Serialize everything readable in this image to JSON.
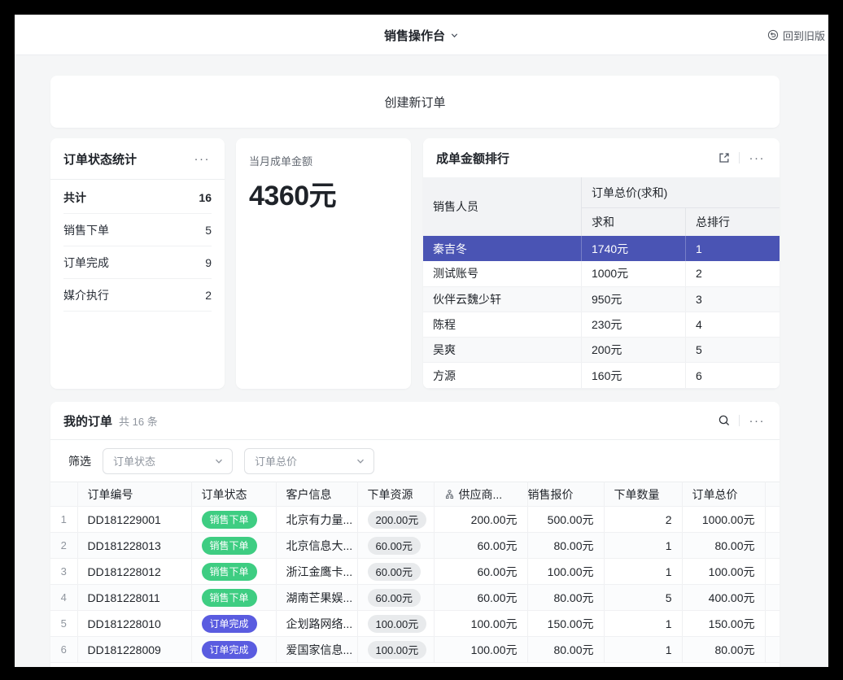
{
  "header": {
    "title": "销售操作台",
    "back_label": "回到旧版"
  },
  "create_order": {
    "label": "创建新订单"
  },
  "status_card": {
    "title": "订单状态统计",
    "more": "···",
    "rows": [
      {
        "label": "共计",
        "value": "16",
        "bold": true
      },
      {
        "label": "销售下单",
        "value": "5",
        "bold": false
      },
      {
        "label": "订单完成",
        "value": "9",
        "bold": false
      },
      {
        "label": "媒介执行",
        "value": "2",
        "bold": false
      }
    ]
  },
  "amount_card": {
    "label": "当月成单金额",
    "value": "4360元"
  },
  "ranking_card": {
    "title": "成单金额排行",
    "more": "···",
    "col_person": "销售人员",
    "col_group": "订单总价(求和)",
    "col_sum": "求和",
    "col_rank": "总排行",
    "rows": [
      {
        "name": "秦吉冬",
        "sum": "1740元",
        "rank": "1",
        "highlight": true
      },
      {
        "name": "测试账号",
        "sum": "1000元",
        "rank": "2",
        "highlight": false
      },
      {
        "name": "伙伴云魏少轩",
        "sum": "950元",
        "rank": "3",
        "highlight": false
      },
      {
        "name": "陈程",
        "sum": "230元",
        "rank": "4",
        "highlight": false
      },
      {
        "name": "吴爽",
        "sum": "200元",
        "rank": "5",
        "highlight": false
      },
      {
        "name": "方源",
        "sum": "160元",
        "rank": "6",
        "highlight": false
      }
    ]
  },
  "orders_card": {
    "title": "我的订单",
    "count": "共 16 条",
    "more": "···",
    "filter_label": "筛选",
    "filters": [
      "订单状态",
      "订单总价"
    ],
    "columns": {
      "id": "订单编号",
      "status": "订单状态",
      "customer": "客户信息",
      "resource": "下单资源",
      "supplier": "供应商...",
      "quote": "销售报价",
      "qty": "下单数量",
      "total": "订单总价"
    },
    "rows": [
      {
        "num": "1",
        "id": "DD181229001",
        "status": "销售下单",
        "status_type": "green",
        "customer": "北京有力量...",
        "resource": "200.00元",
        "supplier": "200.00元",
        "quote": "500.00元",
        "qty": "2",
        "total": "1000.00元"
      },
      {
        "num": "2",
        "id": "DD181228013",
        "status": "销售下单",
        "status_type": "green",
        "customer": "北京信息大...",
        "resource": "60.00元",
        "supplier": "60.00元",
        "quote": "80.00元",
        "qty": "1",
        "total": "80.00元"
      },
      {
        "num": "3",
        "id": "DD181228012",
        "status": "销售下单",
        "status_type": "green",
        "customer": "浙江金鹰卡...",
        "resource": "60.00元",
        "supplier": "60.00元",
        "quote": "100.00元",
        "qty": "1",
        "total": "100.00元"
      },
      {
        "num": "4",
        "id": "DD181228011",
        "status": "销售下单",
        "status_type": "green",
        "customer": "湖南芒果娱...",
        "resource": "60.00元",
        "supplier": "60.00元",
        "quote": "80.00元",
        "qty": "5",
        "total": "400.00元"
      },
      {
        "num": "5",
        "id": "DD181228010",
        "status": "订单完成",
        "status_type": "indigo",
        "customer": "企划路网络...",
        "resource": "100.00元",
        "supplier": "100.00元",
        "quote": "150.00元",
        "qty": "1",
        "total": "150.00元"
      },
      {
        "num": "6",
        "id": "DD181228009",
        "status": "订单完成",
        "status_type": "indigo",
        "customer": "爱国家信息...",
        "resource": "100.00元",
        "supplier": "100.00元",
        "quote": "80.00元",
        "qty": "1",
        "total": "80.00元"
      }
    ]
  },
  "colors": {
    "highlight_row": "#4A54B4",
    "status_green": "#3ECD82",
    "status_indigo": "#5A5CE0"
  }
}
